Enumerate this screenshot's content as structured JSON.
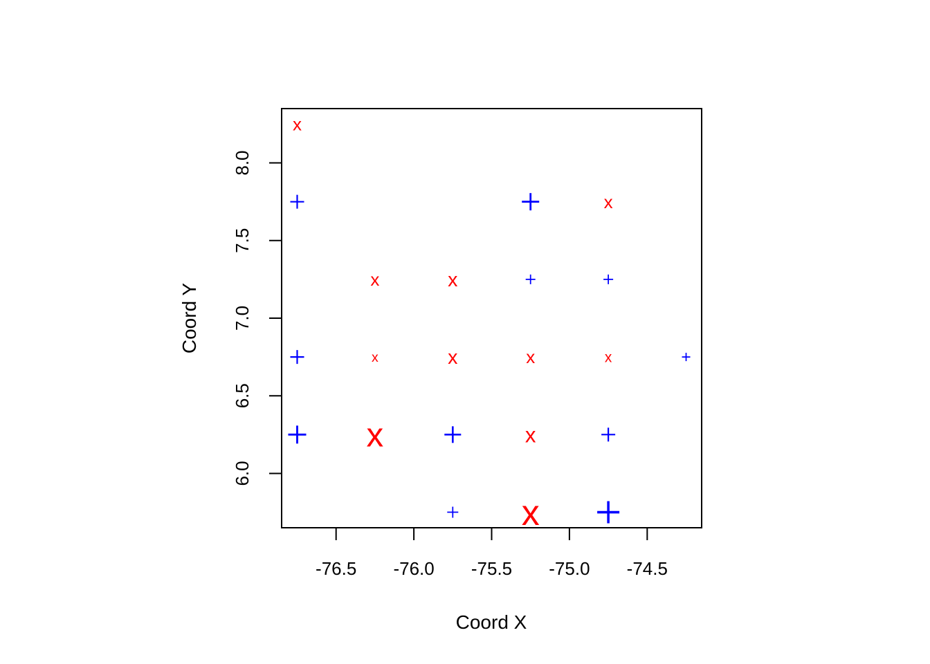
{
  "chart_data": {
    "type": "scatter",
    "title": "",
    "xlabel": "Coord X",
    "ylabel": "Coord Y",
    "xlim": [
      -76.85,
      -74.15
    ],
    "ylim": [
      5.65,
      8.35
    ],
    "xticks": [
      -76.5,
      -76.0,
      -75.5,
      -75.0,
      -74.5
    ],
    "xtick_labels": [
      "-76.5",
      "-76.0",
      "-75.5",
      "-75.0",
      "-74.5"
    ],
    "yticks": [
      6.0,
      6.5,
      7.0,
      7.5,
      8.0
    ],
    "ytick_labels": [
      "6.0",
      "6.5",
      "7.0",
      "7.5",
      "8.0"
    ],
    "grid": false,
    "legend": "none",
    "colors": {
      "x": "#ff0000",
      "plus": "#0000ff"
    },
    "points": [
      {
        "x": -76.75,
        "y": 8.25,
        "symbol": "x",
        "size": 1.0
      },
      {
        "x": -76.75,
        "y": 7.75,
        "symbol": "plus",
        "size": 1.0
      },
      {
        "x": -75.25,
        "y": 7.75,
        "symbol": "plus",
        "size": 1.25
      },
      {
        "x": -74.75,
        "y": 7.75,
        "symbol": "x",
        "size": 1.0
      },
      {
        "x": -76.25,
        "y": 7.25,
        "symbol": "x",
        "size": 1.0
      },
      {
        "x": -75.75,
        "y": 7.25,
        "symbol": "x",
        "size": 1.1
      },
      {
        "x": -75.25,
        "y": 7.25,
        "symbol": "plus",
        "size": 0.7
      },
      {
        "x": -74.75,
        "y": 7.25,
        "symbol": "plus",
        "size": 0.7
      },
      {
        "x": -76.75,
        "y": 6.75,
        "symbol": "plus",
        "size": 1.0
      },
      {
        "x": -76.25,
        "y": 6.75,
        "symbol": "x",
        "size": 0.75
      },
      {
        "x": -75.75,
        "y": 6.75,
        "symbol": "x",
        "size": 1.1
      },
      {
        "x": -75.25,
        "y": 6.75,
        "symbol": "x",
        "size": 1.0
      },
      {
        "x": -74.75,
        "y": 6.75,
        "symbol": "x",
        "size": 0.8
      },
      {
        "x": -74.25,
        "y": 6.75,
        "symbol": "plus",
        "size": 0.6
      },
      {
        "x": -76.75,
        "y": 6.25,
        "symbol": "plus",
        "size": 1.3
      },
      {
        "x": -76.25,
        "y": 6.25,
        "symbol": "x",
        "size": 1.9
      },
      {
        "x": -75.75,
        "y": 6.25,
        "symbol": "plus",
        "size": 1.2
      },
      {
        "x": -75.25,
        "y": 6.25,
        "symbol": "x",
        "size": 1.2
      },
      {
        "x": -74.75,
        "y": 6.25,
        "symbol": "plus",
        "size": 1.0
      },
      {
        "x": -75.75,
        "y": 5.75,
        "symbol": "plus",
        "size": 0.8
      },
      {
        "x": -75.25,
        "y": 5.75,
        "symbol": "x",
        "size": 2.0
      },
      {
        "x": -74.75,
        "y": 5.75,
        "symbol": "plus",
        "size": 1.6
      }
    ]
  }
}
